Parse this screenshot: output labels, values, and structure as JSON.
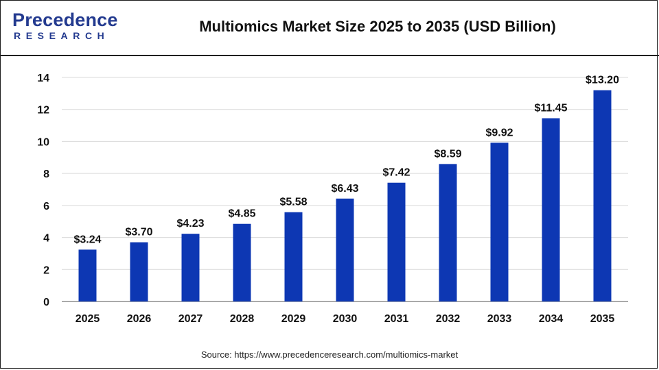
{
  "logo": {
    "main": "Precedence",
    "sub": "RESEARCH"
  },
  "colors": {
    "bar": "#0d37b3",
    "brand": "#233a8f",
    "grid": "#d9d9d9",
    "axis": "#555555",
    "text": "#111111"
  },
  "source_text": "Source: https://www.precedenceresearch.com/multiomics-market",
  "chart_data": {
    "type": "bar",
    "title": "Multiomics Market Size 2025 to 2035 (USD Billion)",
    "xlabel": "",
    "ylabel": "",
    "categories": [
      "2025",
      "2026",
      "2027",
      "2028",
      "2029",
      "2030",
      "2031",
      "2032",
      "2033",
      "2034",
      "2035"
    ],
    "values": [
      3.24,
      3.7,
      4.23,
      4.85,
      5.58,
      6.43,
      7.42,
      8.59,
      9.92,
      11.45,
      13.2
    ],
    "data_labels": [
      "$3.24",
      "$3.70",
      "$4.23",
      "$4.85",
      "$5.58",
      "$6.43",
      "$7.42",
      "$8.59",
      "$9.92",
      "$11.45",
      "$13.20"
    ],
    "ylim": [
      0,
      14
    ],
    "yticks": [
      0,
      2,
      4,
      6,
      8,
      10,
      12,
      14
    ],
    "grid": true,
    "legend": "none"
  }
}
